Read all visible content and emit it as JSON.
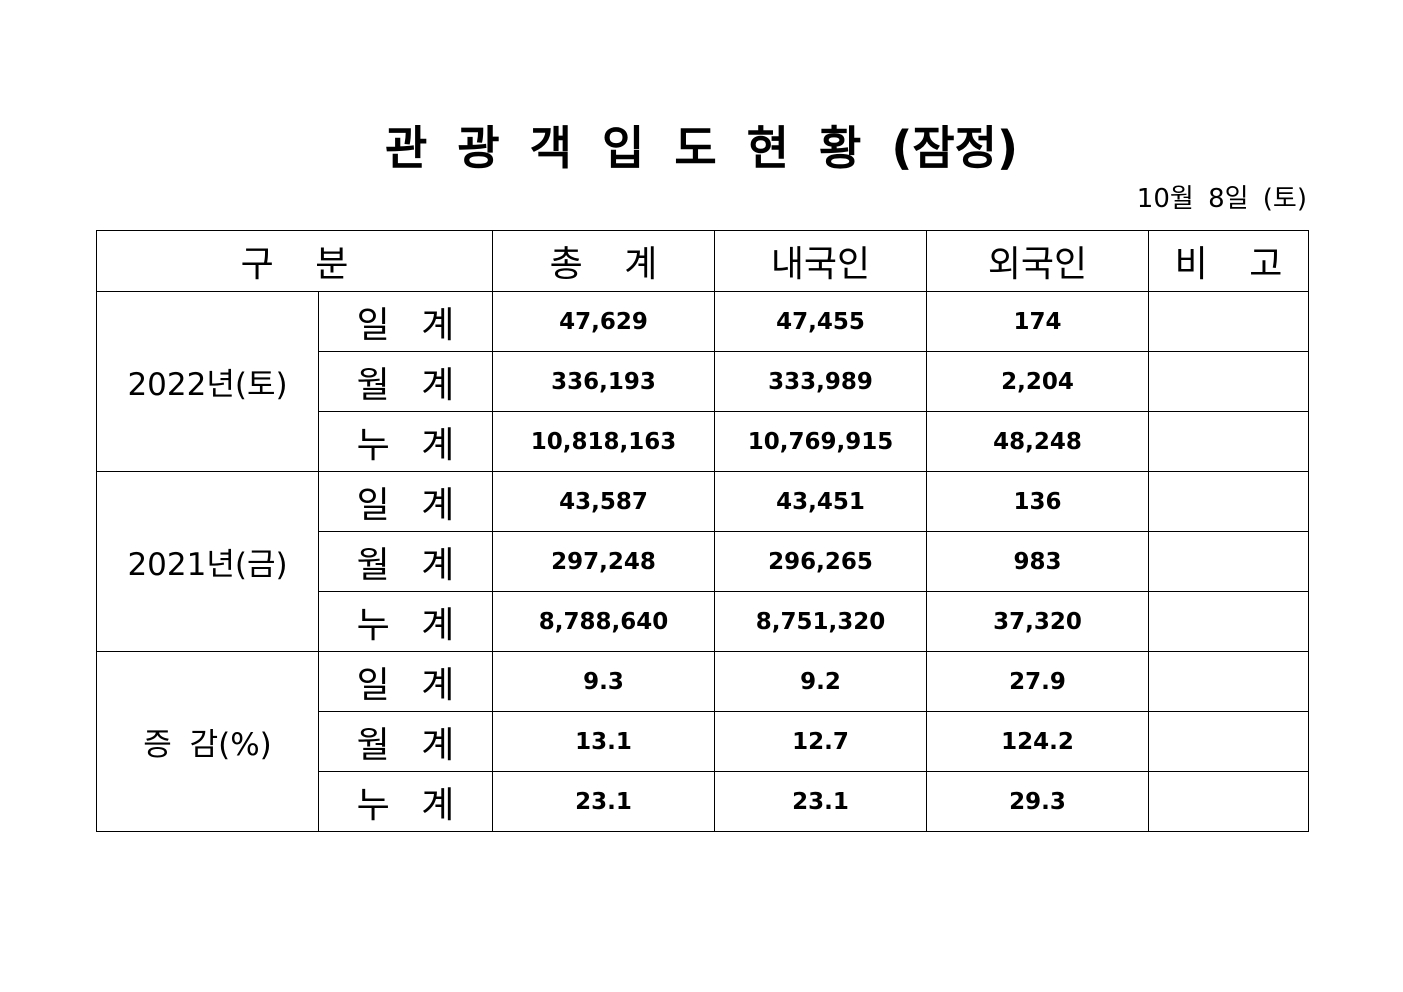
{
  "header": {
    "title": "관 광 객 입 도 현 황 (잠정)",
    "date": "10월 8일 (토)"
  },
  "table": {
    "columns": [
      "구 분",
      "총 계",
      "내국인",
      "외국인",
      "비 고"
    ],
    "groups": [
      {
        "label": "2022년(토)",
        "rows": [
          {
            "label": "일 계",
            "values": [
              "47,629",
              "47,455",
              "174"
            ]
          },
          {
            "label": "월 계",
            "values": [
              "336,193",
              "333,989",
              "2,204"
            ]
          },
          {
            "label": "누 계",
            "values": [
              "10,818,163",
              "10,769,915",
              "48,248"
            ]
          }
        ]
      },
      {
        "label": "2021년(금)",
        "rows": [
          {
            "label": "일 계",
            "values": [
              "43,587",
              "43,451",
              "136"
            ]
          },
          {
            "label": "월 계",
            "values": [
              "297,248",
              "296,265",
              "983"
            ]
          },
          {
            "label": "누 계",
            "values": [
              "8,788,640",
              "8,751,320",
              "37,320"
            ]
          }
        ]
      },
      {
        "label": "증 감(%)",
        "rows": [
          {
            "label": "일 계",
            "values": [
              "9.3",
              "9.2",
              "27.9"
            ]
          },
          {
            "label": "월 계",
            "values": [
              "13.1",
              "12.7",
              "124.2"
            ]
          },
          {
            "label": "누 계",
            "values": [
              "23.1",
              "23.1",
              "29.3"
            ]
          }
        ]
      }
    ]
  }
}
